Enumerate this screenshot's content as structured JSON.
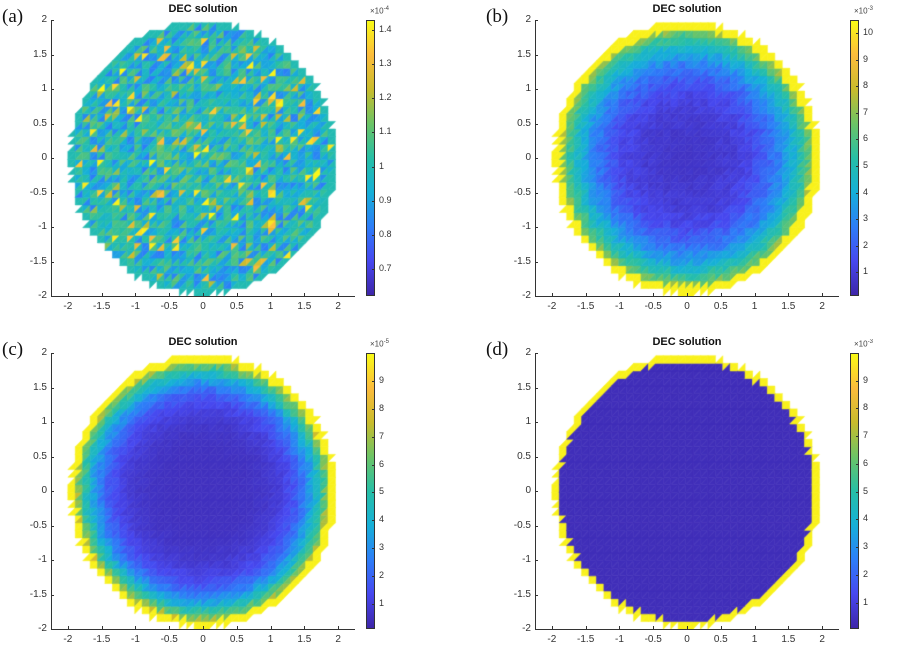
{
  "colormap": "parula",
  "colormap_stops": [
    "#3e26a8",
    "#4748f0",
    "#2d7ef8",
    "#16b0d8",
    "#27bfa6",
    "#6cc466",
    "#c9bc2c",
    "#fcbc3c",
    "#f9fb15"
  ],
  "chart_data": [
    {
      "panel_label": "(a)",
      "type": "heatmap",
      "title": "DEC solution",
      "xlim": [
        -2.25,
        2.25
      ],
      "ylim": [
        -2,
        2
      ],
      "xticks": [
        "-2",
        "-1.5",
        "-1",
        "-0.5",
        "0",
        "0.5",
        "1",
        "1.5",
        "2"
      ],
      "yticks": [
        "2",
        "1.5",
        "1",
        "0.5",
        "0",
        "-0.5",
        "-1",
        "-1.5",
        "-2"
      ],
      "colorbar": {
        "multiplier": "×10",
        "exponent": "-4",
        "range": [
          0.62,
          1.43
        ],
        "ticks": [
          "0.7",
          "0.8",
          "0.9",
          "1",
          "1.1",
          "1.2",
          "1.3",
          "1.4"
        ],
        "tick_values": [
          0.7,
          0.8,
          0.9,
          1,
          1.1,
          1.2,
          1.3,
          1.4
        ]
      },
      "field": {
        "domain": "disk radius 2 (triangulated)",
        "pattern": "noisy interior around 0.8–1.0, boundary ring ≈ 1"
      }
    },
    {
      "panel_label": "(b)",
      "type": "heatmap",
      "title": "DEC solution",
      "xlim": [
        -2.25,
        2.25
      ],
      "ylim": [
        -2,
        2
      ],
      "xticks": [
        "-2",
        "-1.5",
        "-1",
        "-0.5",
        "0",
        "0.5",
        "1",
        "1.5",
        "2"
      ],
      "yticks": [
        "2",
        "1.5",
        "1",
        "0.5",
        "0",
        "-0.5",
        "-1",
        "-1.5",
        "-2"
      ],
      "colorbar": {
        "multiplier": "×10",
        "exponent": "-3",
        "range": [
          0.1,
          10.5
        ],
        "ticks": [
          "1",
          "2",
          "3",
          "4",
          "5",
          "6",
          "7",
          "8",
          "9",
          "10"
        ],
        "tick_values": [
          1,
          2,
          3,
          4,
          5,
          6,
          7,
          8,
          9,
          10
        ]
      },
      "field": {
        "domain": "disk radius 2 (triangulated)",
        "pattern": "low in center, rising toward boundary, ≈10 at boundary"
      }
    },
    {
      "panel_label": "(c)",
      "type": "heatmap",
      "title": "DEC solution",
      "xlim": [
        -2.25,
        2.25
      ],
      "ylim": [
        -2,
        2
      ],
      "xticks": [
        "-2",
        "-1.5",
        "-1",
        "-0.5",
        "0",
        "0.5",
        "1",
        "1.5",
        "2"
      ],
      "yticks": [
        "2",
        "1.5",
        "1",
        "0.5",
        "0",
        "-0.5",
        "-1",
        "-1.5",
        "-2"
      ],
      "colorbar": {
        "multiplier": "×10",
        "exponent": "-5",
        "range": [
          0.1,
          10
        ],
        "ticks": [
          "1",
          "2",
          "3",
          "4",
          "5",
          "6",
          "7",
          "8",
          "9"
        ],
        "tick_values": [
          1,
          2,
          3,
          4,
          5,
          6,
          7,
          8,
          9
        ]
      },
      "field": {
        "domain": "disk radius 2 (triangulated)",
        "pattern": "low in center, sharper rise near boundary, ≈10 at boundary"
      }
    },
    {
      "panel_label": "(d)",
      "type": "heatmap",
      "title": "DEC solution",
      "xlim": [
        -2.25,
        2.25
      ],
      "ylim": [
        -2,
        2
      ],
      "xticks": [
        "-2",
        "-1.5",
        "-1",
        "-0.5",
        "0",
        "0.5",
        "1",
        "1.5",
        "2"
      ],
      "yticks": [
        "2",
        "1.5",
        "1",
        "0.5",
        "0",
        "-0.5",
        "-1",
        "-1.5",
        "-2"
      ],
      "colorbar": {
        "multiplier": "×10",
        "exponent": "-3",
        "range": [
          0.05,
          10
        ],
        "ticks": [
          "1",
          "2",
          "3",
          "4",
          "5",
          "6",
          "7",
          "8",
          "9"
        ],
        "tick_values": [
          1,
          2,
          3,
          4,
          5,
          6,
          7,
          8,
          9
        ]
      },
      "field": {
        "domain": "disk radius 2 (triangulated)",
        "pattern": "≈0 everywhere inside, ≈10 on boundary ring"
      }
    }
  ]
}
